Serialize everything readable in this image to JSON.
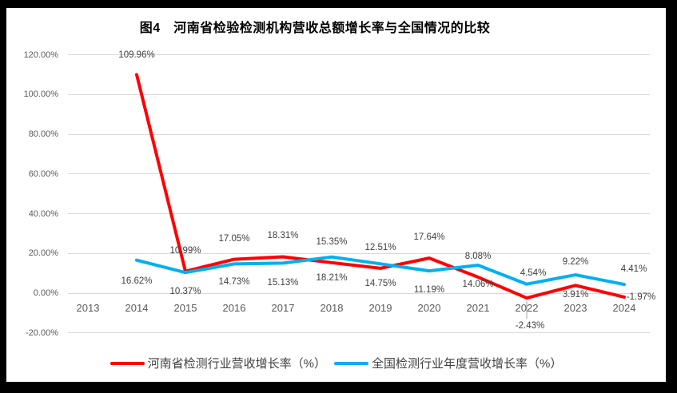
{
  "chart_data": {
    "type": "line",
    "title": "图4　河南省检验检测机构营收总额增长率与全国情况的比较",
    "categories": [
      "2013",
      "2014",
      "2015",
      "2016",
      "2017",
      "2018",
      "2019",
      "2020",
      "2021",
      "2022",
      "2023",
      "2024"
    ],
    "y_axis": {
      "min": -20,
      "max": 120,
      "step": 20,
      "tick_values": [
        120,
        100,
        80,
        60,
        40,
        20,
        0,
        -20
      ],
      "tick_labels": [
        "120.00%",
        "100.00%",
        "80.00%",
        "60.00%",
        "40.00%",
        "20.00%",
        "0.00%",
        "-20.00%"
      ]
    },
    "grid": true,
    "legend_position": "bottom",
    "style": {
      "gridline_color": "#D9D9D9",
      "axis_label_color": "#595959",
      "data_label_color": "#404040",
      "leader_line_color": "#A6A6A6"
    },
    "series": [
      {
        "name": "河南省检测行业营收增长率（%）",
        "color": "#FF0000",
        "values": [
          null,
          109.96,
          10.99,
          17.05,
          18.31,
          15.35,
          12.51,
          17.64,
          8.08,
          -2.43,
          3.91,
          -1.97
        ],
        "labels": [
          null,
          "109.96%",
          "10.99%",
          "17.05%",
          "18.31%",
          "15.35%",
          "12.51%",
          "17.64%",
          "8.08%",
          "-2.43%",
          "3.91%",
          "-1.97%"
        ],
        "label_offsets": [
          null,
          [
            0,
            -24
          ],
          [
            0,
            -26
          ],
          [
            0,
            -26
          ],
          [
            0,
            -26
          ],
          [
            0,
            -26
          ],
          [
            0,
            -26
          ],
          [
            0,
            -26
          ],
          [
            0,
            -26
          ],
          [
            4,
            35
          ],
          [
            0,
            12
          ],
          [
            21,
            0
          ]
        ],
        "leader_line_index": 9
      },
      {
        "name": "全国检测行业年度营收增长率（%）",
        "color": "#00B0F0",
        "values": [
          null,
          16.62,
          10.37,
          14.73,
          15.13,
          18.21,
          14.75,
          11.19,
          14.06,
          4.54,
          9.22,
          4.41
        ],
        "labels": [
          null,
          "16.62%",
          "10.37%",
          "14.73%",
          "15.13%",
          "18.21%",
          "14.75%",
          "11.19%",
          "14.06%",
          "4.54%",
          "9.22%",
          "4.41%"
        ],
        "label_offsets": [
          null,
          [
            0,
            26
          ],
          [
            0,
            24
          ],
          [
            0,
            23
          ],
          [
            0,
            25
          ],
          [
            0,
            26
          ],
          [
            0,
            25
          ],
          [
            0,
            24
          ],
          [
            0,
            24
          ],
          [
            8,
            -14
          ],
          [
            0,
            -16
          ],
          [
            12,
            -19
          ]
        ]
      }
    ]
  }
}
